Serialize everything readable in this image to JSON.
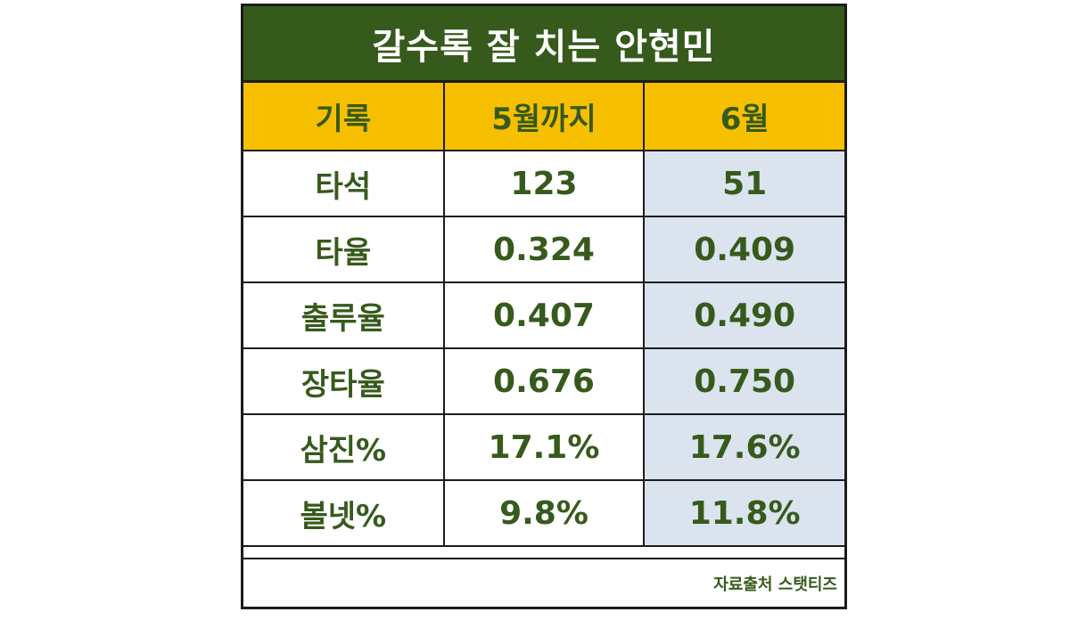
{
  "title": "갈수록 잘 치는 안현민",
  "columns": [
    "기록",
    "5월까지",
    "6월"
  ],
  "rows": [
    {
      "label": "타석",
      "may": "123",
      "june": "51"
    },
    {
      "label": "타율",
      "may": "0.324",
      "june": "0.409"
    },
    {
      "label": "출루율",
      "may": "0.407",
      "june": "0.490"
    },
    {
      "label": "장타율",
      "may": "0.676",
      "june": "0.750"
    },
    {
      "label": "삼진%",
      "may": "17.1%",
      "june": "17.6%"
    },
    {
      "label": "볼넷%",
      "may": "9.8%",
      "june": "11.8%"
    }
  ],
  "source": "자료출처 스탯티즈",
  "colors": {
    "title_bg": "#365a1c",
    "header_bg": "#f6c000",
    "june_bg": "#dbe3ef",
    "text": "#365a1c"
  }
}
